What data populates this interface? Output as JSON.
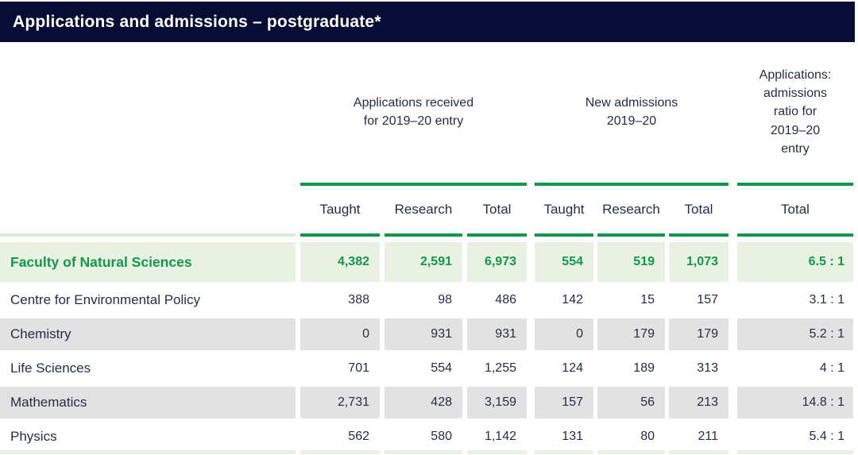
{
  "header": {
    "title": "Applications and admissions – postgraduate*"
  },
  "colors": {
    "navy": "#060c33",
    "green": "#12984b",
    "highlight_row_bg": "#e9f1e3",
    "grey_row_bg": "#e2e2e2",
    "pale_green_rule": "#dcecd8",
    "text": "#262d45"
  },
  "chart_data": {
    "type": "table",
    "title": "Applications and admissions – postgraduate*",
    "column_groups": [
      "Applications received\nfor 2019–20 entry",
      "New admissions\n2019–20",
      "Applications:\nadmissions\nratio for\n2019–20\nentry"
    ],
    "columns": [
      "Taught",
      "Research",
      "Total",
      "Taught",
      "Research",
      "Total",
      "Total"
    ],
    "rows": [
      {
        "label": "Faculty of Natural Sciences",
        "highlight": true,
        "values": [
          "4,382",
          "2,591",
          "6,973",
          "554",
          "519",
          "1,073",
          "6.5 : 1"
        ]
      },
      {
        "label": "Centre for Environmental Policy",
        "highlight": false,
        "values": [
          "388",
          "98",
          "486",
          "142",
          "15",
          "157",
          "3.1 : 1"
        ]
      },
      {
        "label": "Chemistry",
        "highlight": false,
        "values": [
          "0",
          "931",
          "931",
          "0",
          "179",
          "179",
          "5.2 : 1"
        ]
      },
      {
        "label": "Life Sciences",
        "highlight": false,
        "values": [
          "701",
          "554",
          "1,255",
          "124",
          "189",
          "313",
          "4 : 1"
        ]
      },
      {
        "label": "Mathematics",
        "highlight": false,
        "values": [
          "2,731",
          "428",
          "3,159",
          "157",
          "56",
          "213",
          "14.8 : 1"
        ]
      },
      {
        "label": "Physics",
        "highlight": false,
        "values": [
          "562",
          "580",
          "1,142",
          "131",
          "80",
          "211",
          "5.4 : 1"
        ]
      }
    ]
  }
}
